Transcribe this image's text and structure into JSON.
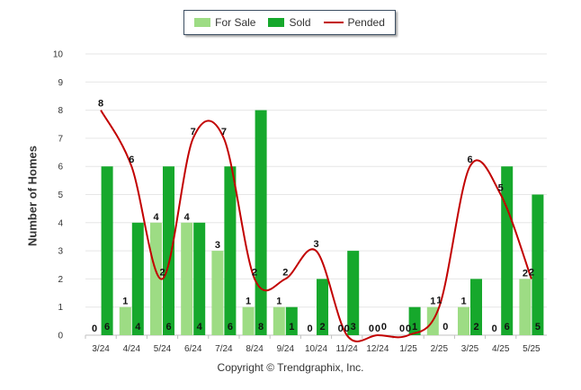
{
  "chart_data": {
    "type": "bar",
    "title": "",
    "xlabel": "",
    "ylabel": "Number of Homes",
    "ylim": [
      0,
      10
    ],
    "yticks": [
      "0",
      "1",
      "2",
      "3",
      "4",
      "5",
      "6",
      "7",
      "8",
      "9",
      "10"
    ],
    "categories": [
      "3/24",
      "4/24",
      "5/24",
      "6/24",
      "7/24",
      "8/24",
      "9/24",
      "10/24",
      "11/24",
      "12/24",
      "1/25",
      "2/25",
      "3/25",
      "4/25",
      "5/25"
    ],
    "series": [
      {
        "name": "For Sale",
        "type": "bar",
        "color": "#9ddc84",
        "values": [
          0,
          1,
          4,
          4,
          3,
          1,
          1,
          0,
          0,
          0,
          0,
          1,
          1,
          0,
          2
        ]
      },
      {
        "name": "Sold",
        "type": "bar",
        "color": "#16a82c",
        "values": [
          6,
          4,
          6,
          4,
          6,
          8,
          1,
          2,
          3,
          0,
          1,
          0,
          2,
          6,
          5
        ]
      },
      {
        "name": "Pended",
        "type": "line",
        "color": "#c20000",
        "values": [
          8,
          6,
          2,
          7,
          7,
          2,
          2,
          3,
          0,
          0,
          0,
          1,
          6,
          5,
          2
        ]
      }
    ],
    "legend": "top-center",
    "grid": true
  },
  "footer": {
    "copyright": "Copyright © Trendgraphix, Inc."
  }
}
